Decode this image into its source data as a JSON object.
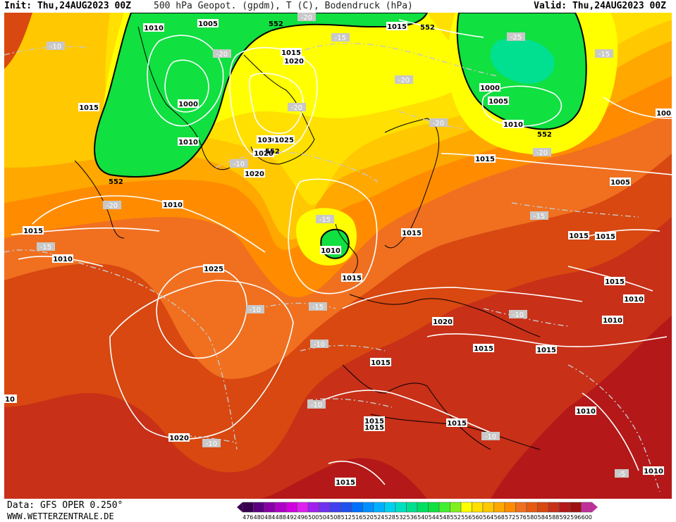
{
  "header": {
    "init": "Init: Thu,24AUG2023 00Z",
    "title": "500 hPa Geopot. (gpdm), T (C), Bodendruck (hPa)",
    "valid": "Valid: Thu,24AUG2023 00Z"
  },
  "footer": {
    "data_source": "Data: GFS OPER 0.250°",
    "website": "WWW.WETTERZENTRALE.DE"
  },
  "legend": {
    "labels": [
      "476",
      "480",
      "484",
      "488",
      "492",
      "496",
      "500",
      "504",
      "508",
      "512",
      "516",
      "520",
      "524",
      "528",
      "532",
      "536",
      "540",
      "544",
      "548",
      "552",
      "556",
      "560",
      "564",
      "568",
      "572",
      "576",
      "580",
      "584",
      "588",
      "592",
      "596",
      "600"
    ],
    "colors": [
      "#3a0050",
      "#5a0080",
      "#8a00a8",
      "#b000c8",
      "#d000e0",
      "#e020f0",
      "#a020f0",
      "#7030f0",
      "#4040f0",
      "#2050f0",
      "#0070ff",
      "#0090ff",
      "#00b0ff",
      "#00d0f0",
      "#00e0c0",
      "#00e090",
      "#00e060",
      "#10e040",
      "#40f030",
      "#80f020",
      "#ffff00",
      "#ffe000",
      "#ffc800",
      "#ffa800",
      "#ff8c00",
      "#f07020",
      "#e85a10",
      "#d84810",
      "#c83018",
      "#b41818",
      "#a01010",
      "#c0309a"
    ]
  },
  "map": {
    "colors": {
      "deep_red": "#b41818",
      "red": "#c83018",
      "orange_red": "#d84810",
      "orange": "#f07020",
      "light_orange": "#ff8c00",
      "amber": "#ffa800",
      "yellow_orange": "#ffc800",
      "yellow": "#ffe000",
      "bright_yellow": "#ffff00",
      "green": "#10e040",
      "teal_green": "#00e090"
    },
    "pressure_labels": [
      "1010",
      "1005",
      "1015",
      "1000",
      "1010",
      "1015",
      "1020",
      "1030",
      "1025",
      "1020",
      "1020",
      "1015",
      "1005",
      "1000",
      "1005",
      "1010",
      "1015",
      "1005",
      "1010",
      "1015",
      "1015",
      "1015",
      "1010",
      "1015",
      "1025",
      "1015",
      "1020",
      "1010",
      "1015",
      "1015",
      "1015",
      "1015",
      "1010",
      "1010",
      "1015",
      "1015",
      "1020",
      "1010",
      "1015",
      "1010",
      "10",
      "1015"
    ],
    "geopot_labels": [
      "552",
      "552",
      "552",
      "552",
      "552"
    ],
    "temp_labels": [
      "-10",
      "-15",
      "-20",
      "-20",
      "-20",
      "-25",
      "-20",
      "-15",
      "-20",
      "-20",
      "-20",
      "-15",
      "-15",
      "-10",
      "-15",
      "-10",
      "-10",
      "-15",
      "-10",
      "-10",
      "-10",
      "-10",
      "-5"
    ]
  }
}
